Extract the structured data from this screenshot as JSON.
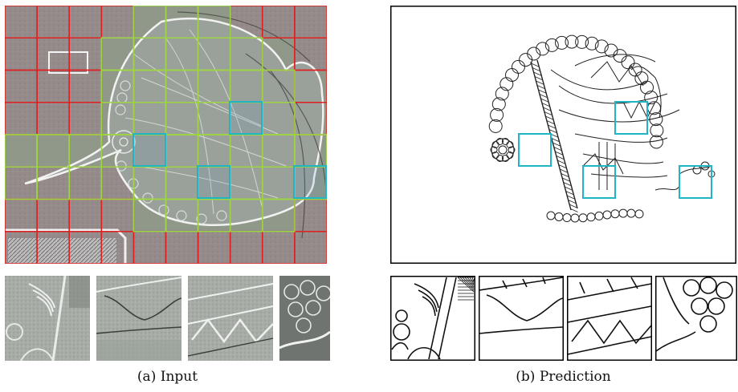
{
  "figure": {
    "panels": [
      {
        "id": "a",
        "caption": "(a) Input"
      },
      {
        "id": "b",
        "caption": "(b) Prediction"
      }
    ],
    "colors": {
      "background_grid": "#e02020",
      "foreground_grid": "#9ed443",
      "highlight": "#1fb5c4",
      "photo_base": "#8f9490",
      "background_tint": "#a07a80"
    },
    "crops_per_panel": 4
  }
}
